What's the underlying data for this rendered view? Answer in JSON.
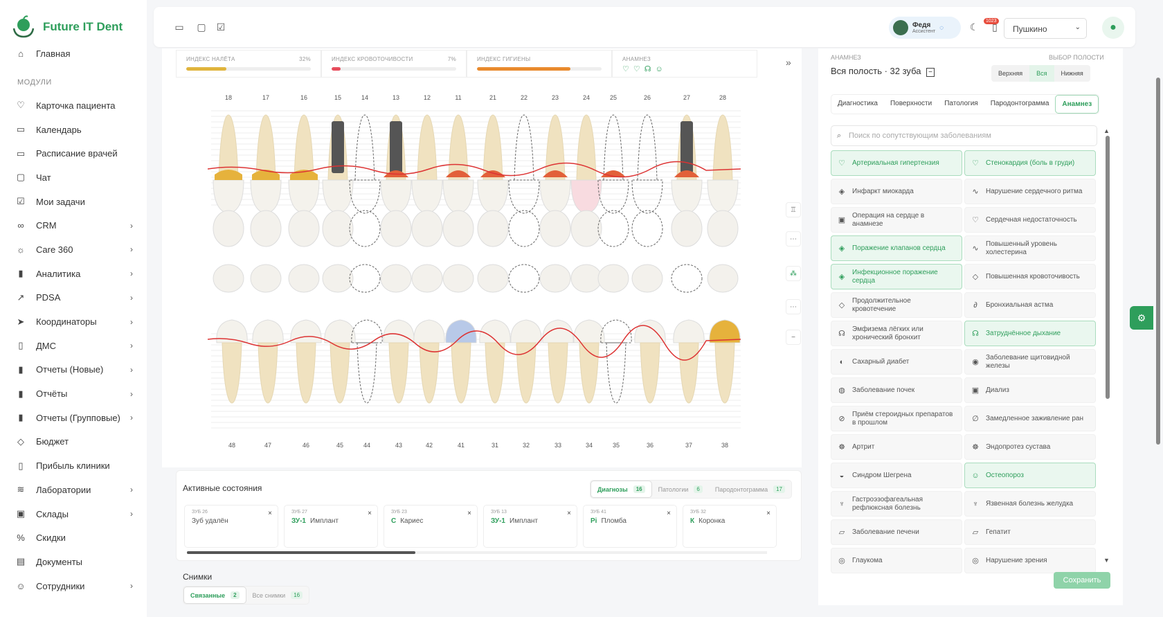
{
  "app": {
    "name": "Future IT Dent"
  },
  "sidebar": {
    "home": "Главная",
    "section": "МОДУЛИ",
    "items": [
      {
        "label": "Карточка пациента",
        "icon": "heart-icon",
        "chev": false
      },
      {
        "label": "Календарь",
        "icon": "calendar-icon",
        "chev": false
      },
      {
        "label": "Расписание врачей",
        "icon": "calendar-icon",
        "chev": false
      },
      {
        "label": "Чат",
        "icon": "chat-icon",
        "chev": false
      },
      {
        "label": "Мои задачи",
        "icon": "check-square-icon",
        "chev": false
      },
      {
        "label": "CRM",
        "icon": "crm-icon",
        "chev": true
      },
      {
        "label": "Care 360",
        "icon": "sun-icon",
        "chev": true
      },
      {
        "label": "Аналитика",
        "icon": "bar-chart-icon",
        "chev": true
      },
      {
        "label": "PDSA",
        "icon": "trend-icon",
        "chev": true
      },
      {
        "label": "Координаторы",
        "icon": "send-icon",
        "chev": true
      },
      {
        "label": "ДМС",
        "icon": "clipboard-icon",
        "chev": true
      },
      {
        "label": "Отчеты (Новые)",
        "icon": "bar-chart-icon",
        "chev": true
      },
      {
        "label": "Отчёты",
        "icon": "bar-chart-icon",
        "chev": true
      },
      {
        "label": "Отчеты (Групповые)",
        "icon": "bar-chart-icon",
        "chev": true
      },
      {
        "label": "Бюджет",
        "icon": "tag-icon",
        "chev": false
      },
      {
        "label": "Прибыль клиники",
        "icon": "clipboard-icon",
        "chev": false
      },
      {
        "label": "Лаборатории",
        "icon": "layers-icon",
        "chev": true
      },
      {
        "label": "Склады",
        "icon": "box-icon",
        "chev": true
      },
      {
        "label": "Скидки",
        "icon": "percent-icon",
        "chev": false
      },
      {
        "label": "Документы",
        "icon": "document-icon",
        "chev": false
      },
      {
        "label": "Сотрудники",
        "icon": "users-icon",
        "chev": true
      }
    ]
  },
  "header": {
    "user_name": "Федя",
    "user_role": "Ассистент",
    "notifications": "1023",
    "clinic": "Пушкино"
  },
  "indices": [
    {
      "label": "ИНДЕКС НАЛЁТА",
      "value": "32%",
      "fill": 0.32,
      "color": "#e0b43c"
    },
    {
      "label": "ИНДЕКС КРОВОТОЧИВОСТИ",
      "value": "7%",
      "fill": 0.07,
      "color": "#e74c5c"
    },
    {
      "label": "ИНДЕКС ГИГИЕНЫ",
      "value": "",
      "fill": 0.75,
      "color": "#e98a2d"
    },
    {
      "label": "АНАМНЕЗ",
      "value": "",
      "fill": 0,
      "color": "#2e9e5b"
    }
  ],
  "upper_teeth": [
    "18",
    "17",
    "16",
    "15",
    "14",
    "13",
    "12",
    "11",
    "21",
    "22",
    "23",
    "24",
    "25",
    "26",
    "27",
    "28"
  ],
  "lower_teeth": [
    "48",
    "47",
    "46",
    "45",
    "44",
    "43",
    "42",
    "41",
    "31",
    "32",
    "33",
    "34",
    "35",
    "36",
    "37",
    "38"
  ],
  "active": {
    "title": "Активные состояния",
    "tabs": [
      {
        "label": "Диагнозы",
        "count": "16"
      },
      {
        "label": "Патологии",
        "count": "6"
      },
      {
        "label": "Пародонтограмма",
        "count": "17"
      }
    ],
    "items": [
      {
        "tooth": "ЗУБ 26",
        "code": "",
        "text": "Зуб удалён"
      },
      {
        "tooth": "ЗУБ 27",
        "code": "ЗУ-1",
        "text": "Имплант"
      },
      {
        "tooth": "ЗУБ 23",
        "code": "С",
        "text": "Кариес"
      },
      {
        "tooth": "ЗУБ 13",
        "code": "ЗУ-1",
        "text": "Имплант"
      },
      {
        "tooth": "ЗУБ 41",
        "code": "Pi",
        "text": "Пломба"
      },
      {
        "tooth": "ЗУБ 32",
        "code": "К",
        "text": "Коронка"
      }
    ]
  },
  "snapshots": {
    "title": "Снимки",
    "tabs": [
      {
        "label": "Связанные",
        "count": "2"
      },
      {
        "label": "Все снимки",
        "count": "16"
      }
    ]
  },
  "anamnesis": {
    "header": "АНАМНЕЗ",
    "subtitle": "Вся полость · 32 зуба",
    "select_header": "ВЫБОР ПОЛОСТИ",
    "jaw": [
      "Верхняя",
      "Вся",
      "Нижняя"
    ],
    "tabs": [
      "Диагностика",
      "Поверхности",
      "Патология",
      "Пародонтограмма",
      "Анамнез"
    ],
    "search_placeholder": "Поиск по сопутствующим заболеваниям",
    "diseases": [
      {
        "label": "Артериальная гипертензия",
        "active": true
      },
      {
        "label": "Стенокардия (боль в груди)",
        "active": true
      },
      {
        "label": "Инфаркт миокарда",
        "active": false
      },
      {
        "label": "Нарушение сердечного ритма",
        "active": false
      },
      {
        "label": "Операция на сердце в анамнезе",
        "active": false
      },
      {
        "label": "Сердечная недостаточность",
        "active": false
      },
      {
        "label": "Поражение клапанов сердца",
        "active": true
      },
      {
        "label": "Повышенный уровень холестерина",
        "active": false
      },
      {
        "label": "Инфекционное поражение сердца",
        "active": true
      },
      {
        "label": "Повышенная кровоточивость",
        "active": false
      },
      {
        "label": "Продолжительное кровотечение",
        "active": false
      },
      {
        "label": "Бронхиальная астма",
        "active": false
      },
      {
        "label": "Эмфизема лёгких или хронический бронхит",
        "active": false
      },
      {
        "label": "Затруднённое дыхание",
        "active": true
      },
      {
        "label": "Сахарный диабет",
        "active": false
      },
      {
        "label": "Заболевание щитовидной железы",
        "active": false
      },
      {
        "label": "Заболевание почек",
        "active": false
      },
      {
        "label": "Диализ",
        "active": false
      },
      {
        "label": "Приём стероидных препаратов в прошлом",
        "active": false
      },
      {
        "label": "Замедленное заживление ран",
        "active": false
      },
      {
        "label": "Артрит",
        "active": false
      },
      {
        "label": "Эндопротез сустава",
        "active": false
      },
      {
        "label": "Синдром Шегрена",
        "active": false
      },
      {
        "label": "Остеопороз",
        "active": true
      },
      {
        "label": "Гастроэзофагеальная рефлюксная болезнь",
        "active": false
      },
      {
        "label": "Язвенная болезнь желудка",
        "active": false
      },
      {
        "label": "Заболевание печени",
        "active": false
      },
      {
        "label": "Гепатит",
        "active": false
      },
      {
        "label": "Глаукома",
        "active": false
      },
      {
        "label": "Нарушение зрения",
        "active": false
      }
    ],
    "save": "Сохранить"
  }
}
